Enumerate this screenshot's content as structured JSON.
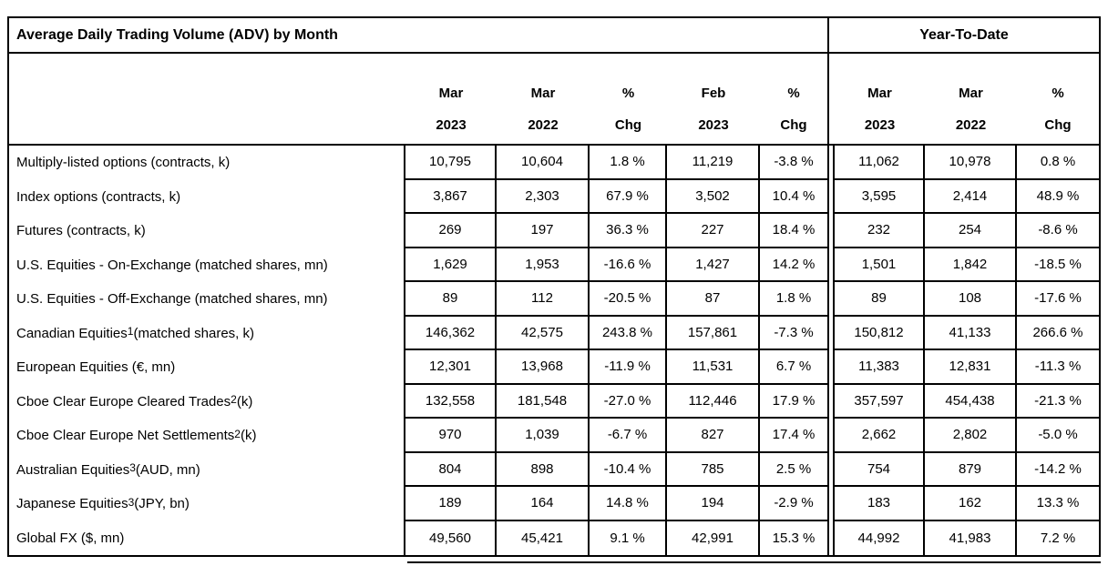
{
  "colors": {
    "border": "#000000",
    "background": "#ffffff",
    "text": "#000000"
  },
  "table": {
    "title": "Average Daily Trading Volume (ADV) by Month",
    "ytd_title": "Year-To-Date",
    "monthly_columns": [
      [
        "Mar",
        "2023"
      ],
      [
        "Mar",
        "2022"
      ],
      [
        "%",
        "Chg"
      ],
      [
        "Feb",
        "2023"
      ],
      [
        "%",
        "Chg"
      ]
    ],
    "ytd_columns": [
      [
        "Mar",
        "2023"
      ],
      [
        "Mar",
        "2022"
      ],
      [
        "%",
        "Chg"
      ]
    ],
    "rows": [
      {
        "label": {
          "pre": "Multiply-listed options (contracts, k)",
          "sup": "",
          "post": ""
        },
        "monthly": [
          "10,795",
          "10,604",
          "1.8 %",
          "11,219",
          "-3.8 %"
        ],
        "ytd": [
          "11,062",
          "10,978",
          "0.8 %"
        ]
      },
      {
        "label": {
          "pre": "Index options (contracts, k)",
          "sup": "",
          "post": ""
        },
        "monthly": [
          "3,867",
          "2,303",
          "67.9 %",
          "3,502",
          "10.4 %"
        ],
        "ytd": [
          "3,595",
          "2,414",
          "48.9 %"
        ]
      },
      {
        "label": {
          "pre": "Futures (contracts, k)",
          "sup": "",
          "post": ""
        },
        "monthly": [
          "269",
          "197",
          "36.3 %",
          "227",
          "18.4 %"
        ],
        "ytd": [
          "232",
          "254",
          "-8.6 %"
        ]
      },
      {
        "label": {
          "pre": "U.S. Equities - On-Exchange (matched shares, mn)",
          "sup": "",
          "post": ""
        },
        "monthly": [
          "1,629",
          "1,953",
          "-16.6 %",
          "1,427",
          "14.2 %"
        ],
        "ytd": [
          "1,501",
          "1,842",
          "-18.5 %"
        ]
      },
      {
        "label": {
          "pre": "U.S. Equities - Off-Exchange (matched shares, mn)",
          "sup": "",
          "post": ""
        },
        "monthly": [
          "89",
          "112",
          "-20.5 %",
          "87",
          "1.8 %"
        ],
        "ytd": [
          "89",
          "108",
          "-17.6 %"
        ]
      },
      {
        "label": {
          "pre": "Canadian Equities",
          "sup": "1",
          "post": " (matched shares, k)"
        },
        "monthly": [
          "146,362",
          "42,575",
          "243.8 %",
          "157,861",
          "-7.3 %"
        ],
        "ytd": [
          "150,812",
          "41,133",
          "266.6 %"
        ]
      },
      {
        "label": {
          "pre": "European Equities (€, mn)",
          "sup": "",
          "post": ""
        },
        "monthly": [
          "12,301",
          "13,968",
          "-11.9 %",
          "11,531",
          "6.7 %"
        ],
        "ytd": [
          "11,383",
          "12,831",
          "-11.3 %"
        ]
      },
      {
        "label": {
          "pre": "Cboe Clear Europe Cleared Trades",
          "sup": "2",
          "post": " (k)"
        },
        "monthly": [
          "132,558",
          "181,548",
          "-27.0 %",
          "112,446",
          "17.9 %"
        ],
        "ytd": [
          "357,597",
          "454,438",
          "-21.3 %"
        ]
      },
      {
        "label": {
          "pre": "Cboe Clear Europe Net Settlements",
          "sup": "2",
          "post": " (k)"
        },
        "monthly": [
          "970",
          "1,039",
          "-6.7 %",
          "827",
          "17.4 %"
        ],
        "ytd": [
          "2,662",
          "2,802",
          "-5.0 %"
        ]
      },
      {
        "label": {
          "pre": "Australian Equities",
          "sup": "3",
          "post": " (AUD, mn)"
        },
        "monthly": [
          "804",
          "898",
          "-10.4 %",
          "785",
          "2.5 %"
        ],
        "ytd": [
          "754",
          "879",
          "-14.2 %"
        ]
      },
      {
        "label": {
          "pre": "Japanese Equities",
          "sup": "3",
          "post": " (JPY, bn)"
        },
        "monthly": [
          "189",
          "164",
          "14.8 %",
          "194",
          "-2.9 %"
        ],
        "ytd": [
          "183",
          "162",
          "13.3 %"
        ]
      },
      {
        "label": {
          "pre": "Global FX ($, mn)",
          "sup": "",
          "post": ""
        },
        "monthly": [
          "49,560",
          "45,421",
          "9.1 %",
          "42,991",
          "15.3 %"
        ],
        "ytd": [
          "44,992",
          "41,983",
          "7.2 %"
        ]
      }
    ]
  }
}
